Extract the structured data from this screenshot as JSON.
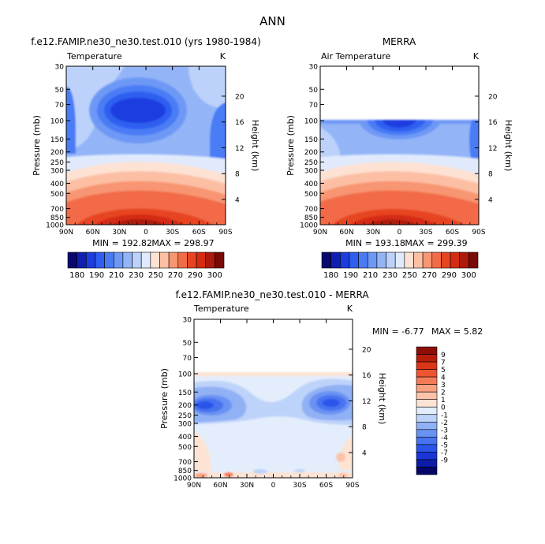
{
  "page_title": "ANN",
  "colors": {
    "t_levels": [
      "#08086e",
      "#0f1fb0",
      "#1b3de0",
      "#2f5ef0",
      "#4a7bf5",
      "#6e98f5",
      "#93b5f7",
      "#bcd2fa",
      "#e0eafc",
      "#fde1d2",
      "#fcbfa4",
      "#f89572",
      "#f26b47",
      "#e74421",
      "#d42b12",
      "#ac1a0c",
      "#7a0a06"
    ],
    "d_levels": [
      "#06066a",
      "#0c1ba8",
      "#1a36d8",
      "#2b55ea",
      "#4673f0",
      "#6a92f2",
      "#91b1f5",
      "#bed3f9",
      "#e3edfc",
      "#fde3d4",
      "#fcc3a8",
      "#f9a180",
      "#f47b57",
      "#ed5432",
      "#dc3618",
      "#b71f0b",
      "#8d0e06"
    ]
  },
  "axis_text": {
    "left_label": "Pressure  (mb)",
    "right_label": "Height  (km)",
    "pressure_ticks": [
      "30",
      "50",
      "70",
      "100",
      "150",
      "200",
      "250",
      "300",
      "400",
      "500",
      "700",
      "850",
      "1000"
    ],
    "height_ticks": [
      "4",
      "8",
      "12",
      "16",
      "20"
    ],
    "lat_ticks": [
      "90N",
      "60N",
      "30N",
      "0",
      "30S",
      "60S",
      "90S"
    ]
  },
  "chart_data": [
    {
      "type": "heatmap",
      "id": "model",
      "title": "f.e12.FAMIP.ne30_ne30.test.010 (yrs 1980-1984)",
      "left_string": "Temperature",
      "right_string": "K",
      "xlabel": "",
      "ylabel": "Pressure  (mb)",
      "y2label": "Height  (km)",
      "x_ticks": [
        "90N",
        "60N",
        "30N",
        "0",
        "30S",
        "60S",
        "90S"
      ],
      "y_ticks": [
        30,
        50,
        70,
        100,
        150,
        200,
        250,
        300,
        400,
        500,
        700,
        850,
        1000
      ],
      "y2_ticks": [
        4,
        8,
        12,
        16,
        20
      ],
      "min_label": "MIN =  192.82",
      "max_label": "MAX =  298.97",
      "min": 192.82,
      "max": 298.97,
      "colorbar_labels": [
        "180",
        "190",
        "210",
        "230",
        "250",
        "270",
        "290",
        "300"
      ],
      "contour_levels": [
        180,
        190,
        200,
        210,
        220,
        230,
        240,
        250,
        260,
        270,
        280,
        290,
        300
      ]
    },
    {
      "type": "heatmap",
      "id": "obs",
      "title": "MERRA",
      "left_string": "Air Temperature",
      "right_string": "K",
      "xlabel": "",
      "ylabel": "Pressure  (mb)",
      "y2label": "Height  (km)",
      "x_ticks": [
        "90N",
        "60N",
        "30N",
        "0",
        "30S",
        "60S",
        "90S"
      ],
      "y_ticks": [
        30,
        50,
        70,
        100,
        150,
        200,
        250,
        300,
        400,
        500,
        700,
        850,
        1000
      ],
      "y2_ticks": [
        4,
        8,
        12,
        16,
        20
      ],
      "min_label": "MIN =  193.18",
      "max_label": "MAX =  299.39",
      "min": 193.18,
      "max": 299.39,
      "data_top_pressure": 100,
      "colorbar_labels": [
        "180",
        "190",
        "210",
        "230",
        "250",
        "270",
        "290",
        "300"
      ],
      "contour_levels": [
        180,
        190,
        200,
        210,
        220,
        230,
        240,
        250,
        260,
        270,
        280,
        290,
        300
      ]
    },
    {
      "type": "heatmap",
      "id": "diff",
      "title": "f.e12.FAMIP.ne30_ne30.test.010 - MERRA",
      "left_string": "Temperature",
      "right_string": "K",
      "xlabel": "",
      "ylabel": "Pressure  (mb)",
      "y2label": "Height  (km)",
      "x_ticks": [
        "90N",
        "60N",
        "30N",
        "0",
        "30S",
        "60S",
        "90S"
      ],
      "y_ticks": [
        30,
        50,
        70,
        100,
        150,
        200,
        250,
        300,
        400,
        500,
        700,
        850,
        1000
      ],
      "y2_ticks": [
        4,
        8,
        12,
        16,
        20
      ],
      "min_label": "MIN =   -6.77",
      "max_label": "MAX =    5.82",
      "min": -6.77,
      "max": 5.82,
      "data_top_pressure": 100,
      "colorbar_labels": [
        "9",
        "7",
        "5",
        "4",
        "3",
        "2",
        "1",
        "0",
        "-1",
        "-2",
        "-3",
        "-4",
        "-5",
        "-7",
        "-9"
      ],
      "contour_levels": [
        -9,
        -7,
        -5,
        -4,
        -3,
        -2,
        -1,
        0,
        1,
        2,
        3,
        4,
        5,
        7,
        9
      ]
    }
  ]
}
